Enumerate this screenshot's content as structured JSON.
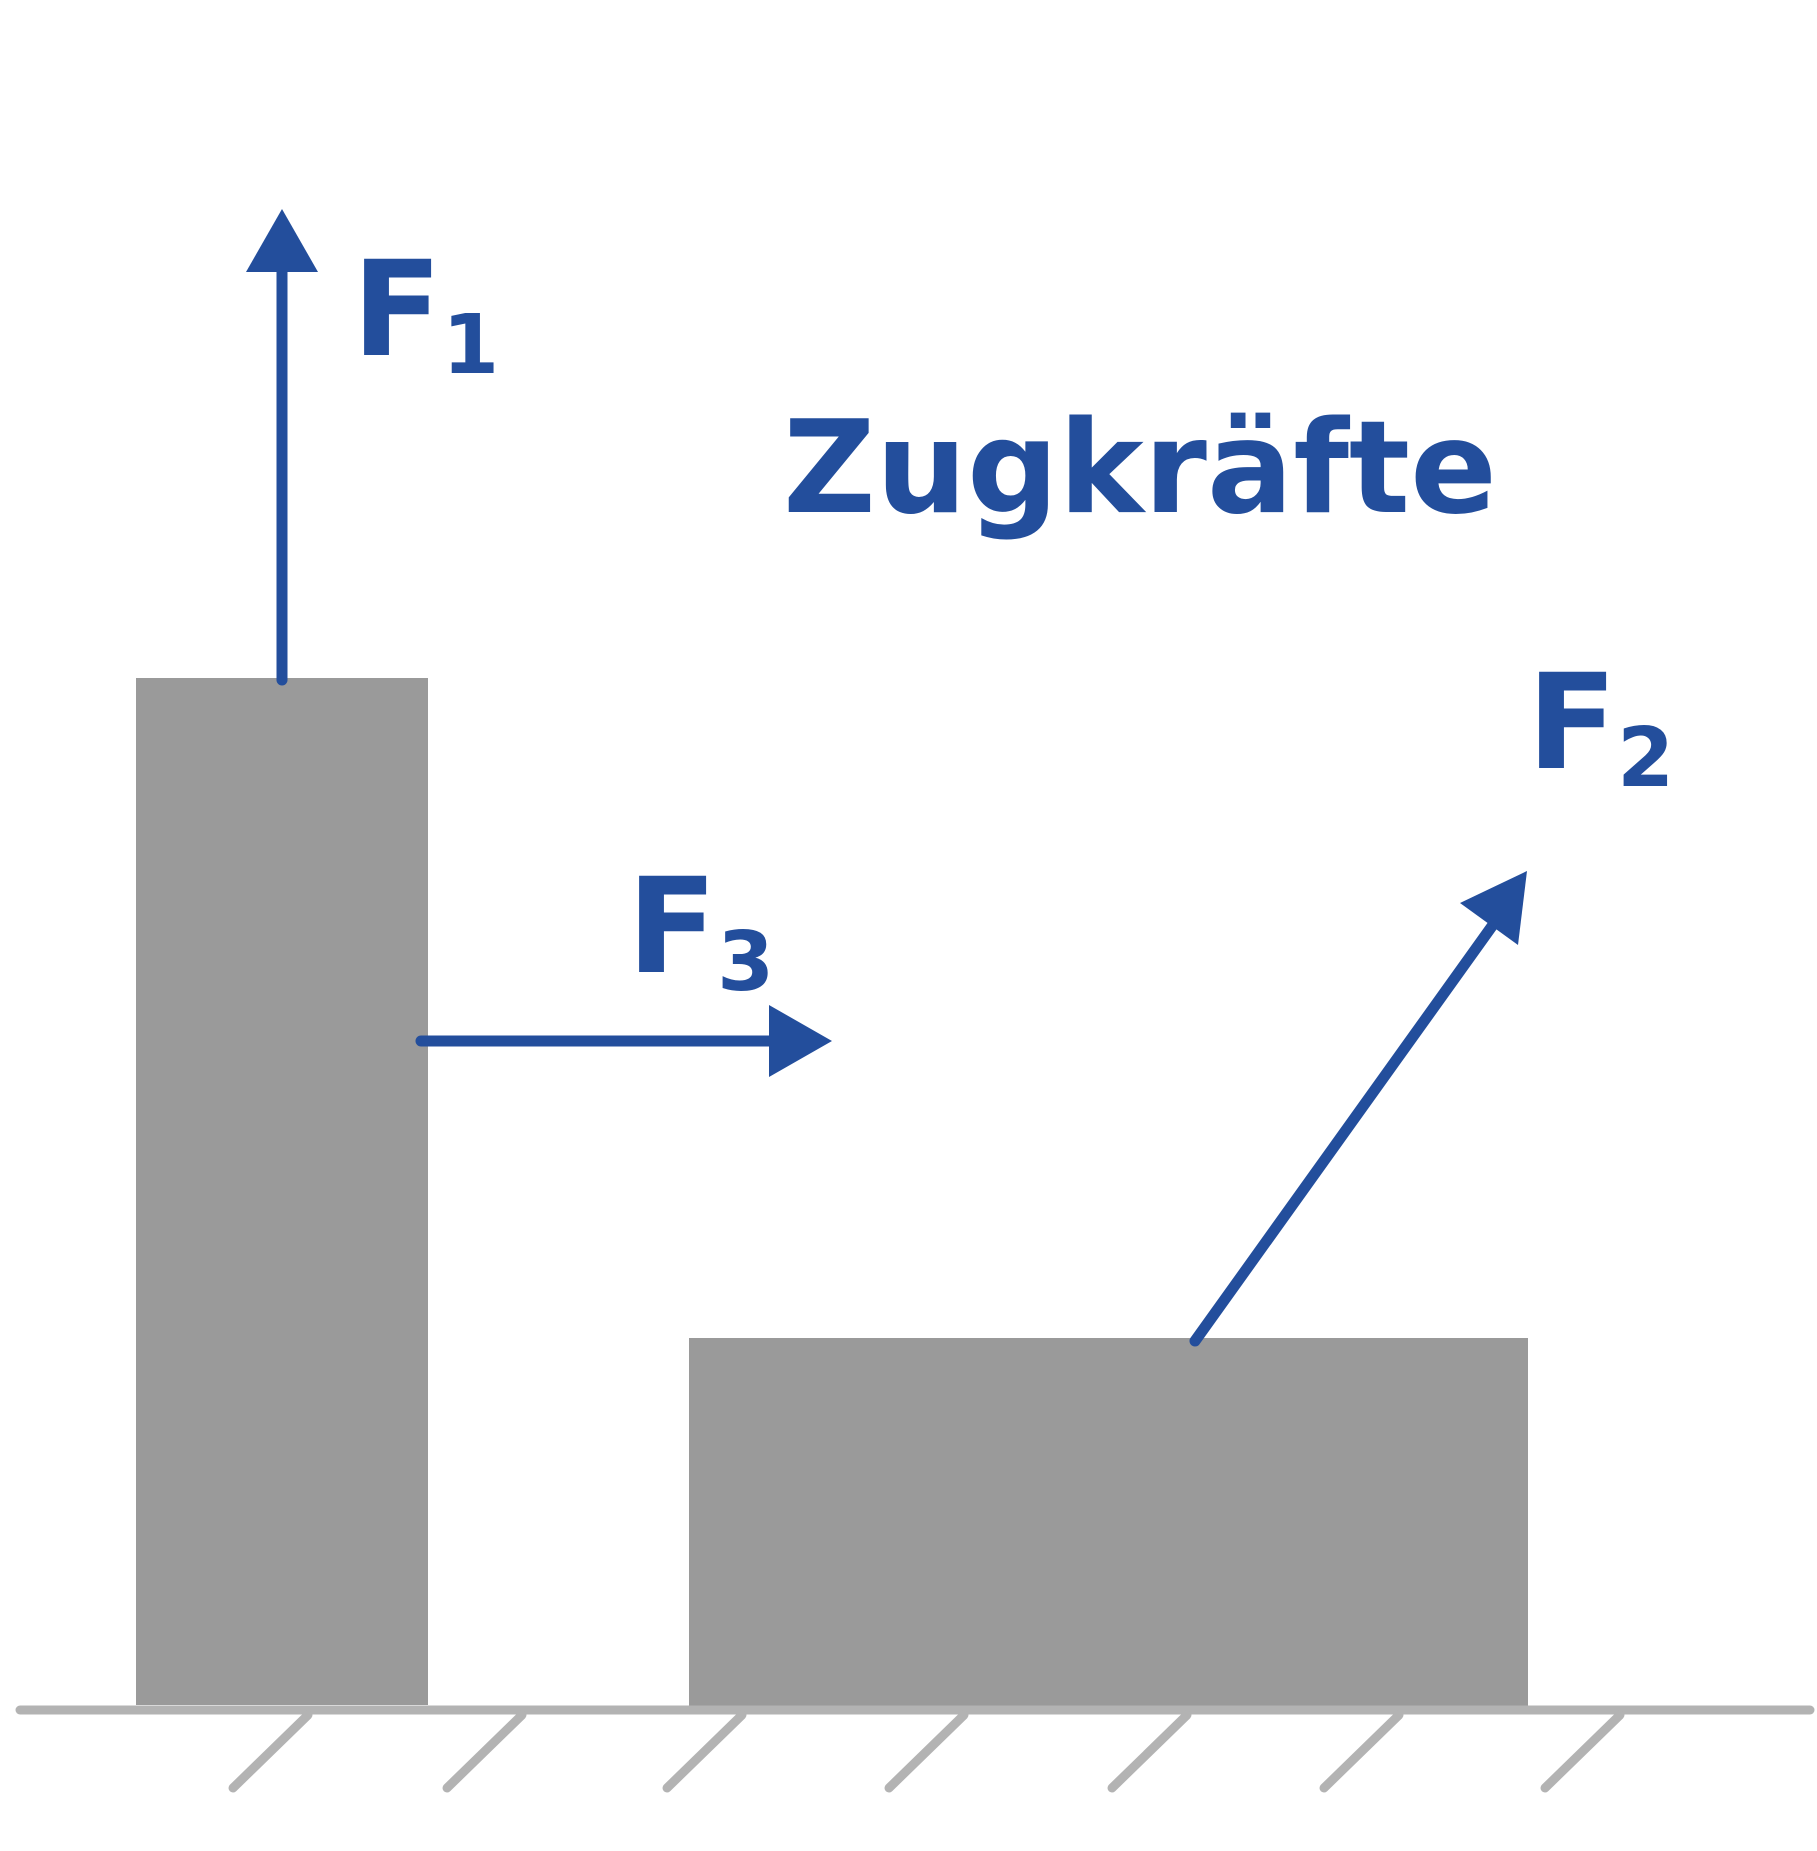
{
  "title": "Zugkräfte",
  "forces": [
    {
      "symbol": "F",
      "index": "1",
      "direction": "up"
    },
    {
      "symbol": "F",
      "index": "2",
      "direction": "up-right"
    },
    {
      "symbol": "F",
      "index": "3",
      "direction": "right"
    }
  ],
  "colors": {
    "arrow": "#234e9c",
    "label": "#234e9c",
    "block": "#9a9a9a",
    "ground": "#b3b3b3",
    "background": "#ffffff"
  }
}
